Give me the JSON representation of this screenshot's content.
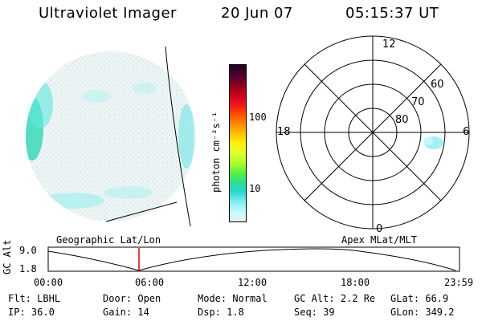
{
  "header": {
    "instrument": "Ultraviolet Imager",
    "date": "20 Jun 07",
    "time": "05:15:37 UT"
  },
  "colorbar": {
    "unit_label": "photon cm⁻²s⁻¹",
    "ticks": [
      "100",
      "10"
    ],
    "colors": [
      "#220022",
      "#4b0030",
      "#8a0020",
      "#c80018",
      "#f01020",
      "#ff4a00",
      "#ff8a00",
      "#ffc200",
      "#fff000",
      "#e0ff30",
      "#a8ff28",
      "#58f040",
      "#28e090",
      "#28d8d0",
      "#88f0f0",
      "#c8f8f8",
      "#e6f2f2"
    ]
  },
  "polar_plot": {
    "mlt_labels": {
      "top": "12",
      "left": "18",
      "right": "6",
      "bottom": "0"
    },
    "lat_labels": [
      "60",
      "70",
      "80"
    ]
  },
  "timeline": {
    "y_title": "GC Alt",
    "y_high": "9.0",
    "y_low": "1.8",
    "left_title": "Geographic Lat/Lon",
    "right_title": "Apex MLat/MLT",
    "x_ticks": [
      "00:00",
      "06:00",
      "12:00",
      "18:00",
      "23:59"
    ],
    "marker_color": "#e00000"
  },
  "status": {
    "row1": [
      {
        "label": "Flt:",
        "value": "LBHL"
      },
      {
        "label": "Door:",
        "value": "Open"
      },
      {
        "label": "Mode:",
        "value": "Normal"
      },
      {
        "label": "GC Alt:",
        "value": "2.2 Re"
      },
      {
        "label": "GLat:",
        "value": "66.9"
      }
    ],
    "row2": [
      {
        "label": "IP:",
        "value": "36.0"
      },
      {
        "label": "Gain:",
        "value": "14"
      },
      {
        "label": "Dsp:",
        "value": "1.8"
      },
      {
        "label": "Seq:",
        "value": "39"
      },
      {
        "label": "GLon:",
        "value": "349.2"
      }
    ]
  }
}
